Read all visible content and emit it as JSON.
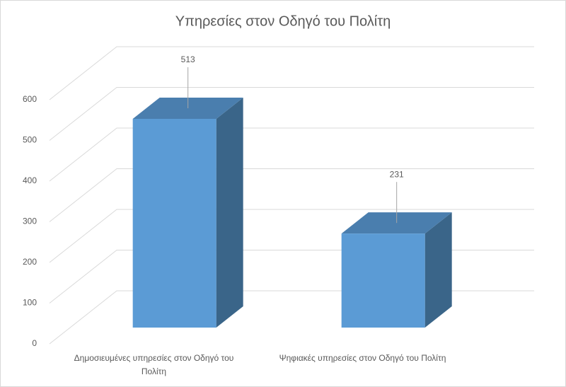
{
  "chart_data": {
    "type": "bar3d",
    "title": "Υπηρεσίες στον Οδηγό του Πολίτη",
    "categories": [
      "Δημοσιευμένες υπηρεσίες στον Οδηγό του Πολίτη",
      "Ψηφιακές υπηρεσίες στον Οδηγό του Πολίτη"
    ],
    "values": [
      513,
      231
    ],
    "color": "#5b9bd5",
    "ylim": [
      0,
      600
    ],
    "yticks": [
      0,
      100,
      200,
      300,
      400,
      500,
      600
    ],
    "grid": true
  }
}
